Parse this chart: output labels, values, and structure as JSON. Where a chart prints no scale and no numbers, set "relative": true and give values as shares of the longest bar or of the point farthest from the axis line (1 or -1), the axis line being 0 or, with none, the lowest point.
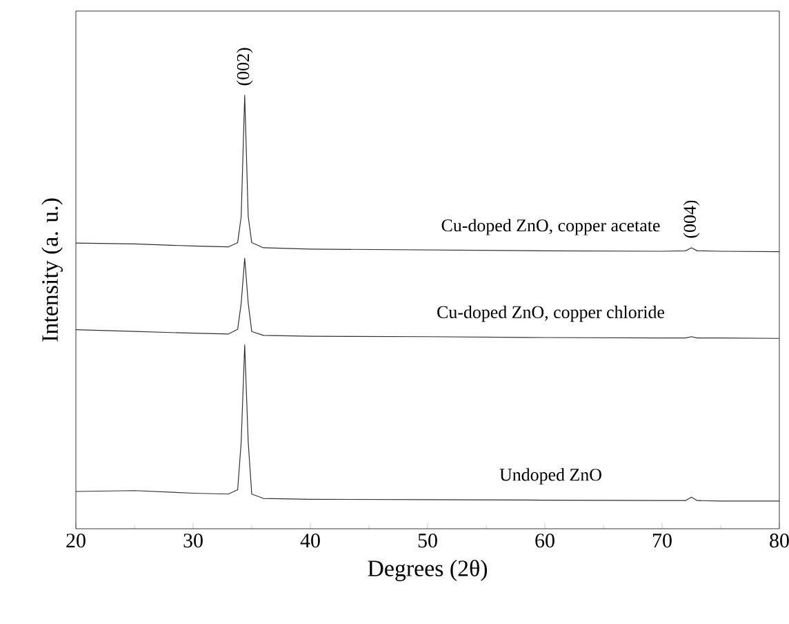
{
  "chart_data": {
    "type": "line",
    "relative": true,
    "xlabel": "Degrees (2θ)",
    "ylabel": "Intensity (a. u.)",
    "x": [
      20,
      25,
      30,
      33,
      33.8,
      34.1,
      34.4,
      34.7,
      35.0,
      36,
      40,
      50,
      60,
      70,
      72,
      72.5,
      73,
      75,
      80
    ],
    "xlim": [
      20,
      80
    ],
    "xticks": [
      20,
      30,
      40,
      50,
      60,
      70,
      80
    ],
    "tick_labels": "x",
    "grid": false,
    "marker": "none",
    "line_style": "solid",
    "series": [
      {
        "name": "Cu-doped ZnO, copper acetate",
        "color": "#303030",
        "values": [
          0.659,
          0.657,
          0.652,
          0.65,
          0.66,
          0.72,
          1,
          0.72,
          0.66,
          0.648,
          0.645,
          0.643,
          0.641,
          0.64,
          0.641,
          0.648,
          0.641,
          0.64,
          0.639
        ]
      },
      {
        "name": "Cu-doped ZnO, copper chloride",
        "color": "#303030",
        "values": [
          0.459,
          0.455,
          0.451,
          0.449,
          0.46,
          0.52,
          0.624,
          0.52,
          0.455,
          0.446,
          0.444,
          0.443,
          0.441,
          0.44,
          0.44,
          0.443,
          0.44,
          0.44,
          0.439
        ]
      },
      {
        "name": "Undoped ZnO",
        "color": "#303030",
        "values": [
          0.086,
          0.088,
          0.082,
          0.08,
          0.09,
          0.2,
          0.424,
          0.2,
          0.08,
          0.07,
          0.068,
          0.067,
          0.066,
          0.065,
          0.065,
          0.073,
          0.065,
          0.064,
          0.064
        ]
      }
    ],
    "annotations": [
      {
        "text": "(002)",
        "x": 34.4,
        "y": 1
      },
      {
        "text": "(004)",
        "x": 72.5,
        "y": 0.648
      }
    ]
  }
}
